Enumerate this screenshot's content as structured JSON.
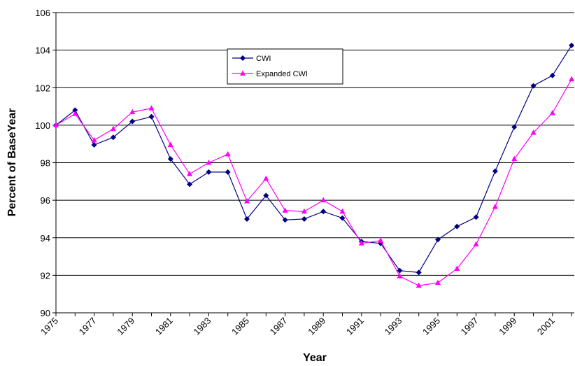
{
  "chart_data": {
    "type": "line",
    "categories": [
      "1975",
      null,
      "1977",
      null,
      "1979",
      null,
      "1981",
      null,
      "1983",
      null,
      "1985",
      null,
      "1987",
      null,
      "1989",
      null,
      "1991",
      null,
      "1993",
      null,
      "1995",
      null,
      "1997",
      null,
      "1999",
      null,
      "2001",
      null
    ],
    "series": [
      {
        "name": "CWI",
        "color": "#000080",
        "marker": "diamond",
        "values": [
          100.0,
          100.8,
          98.95,
          99.35,
          100.2,
          100.45,
          98.2,
          96.85,
          97.5,
          97.5,
          95.0,
          96.25,
          94.95,
          95.0,
          95.4,
          95.05,
          93.8,
          93.7,
          92.25,
          92.15,
          93.9,
          94.6,
          95.1,
          97.55,
          99.9,
          102.1,
          102.65,
          104.25
        ]
      },
      {
        "name": "Expanded CWI",
        "color": "#ff00ff",
        "marker": "triangle",
        "values": [
          100.0,
          100.6,
          99.2,
          99.8,
          100.7,
          100.9,
          98.95,
          97.4,
          98.0,
          98.45,
          95.95,
          97.15,
          95.45,
          95.4,
          96.0,
          95.4,
          93.7,
          93.85,
          91.95,
          91.45,
          91.6,
          92.35,
          93.65,
          95.65,
          98.2,
          99.6,
          100.65,
          102.45
        ]
      }
    ],
    "x_label": "Year",
    "y_label": "Percent of BaseYear",
    "ylim": [
      90,
      106
    ],
    "yticks": [
      90,
      92,
      94,
      96,
      98,
      100,
      102,
      104,
      106
    ],
    "grid": true
  }
}
